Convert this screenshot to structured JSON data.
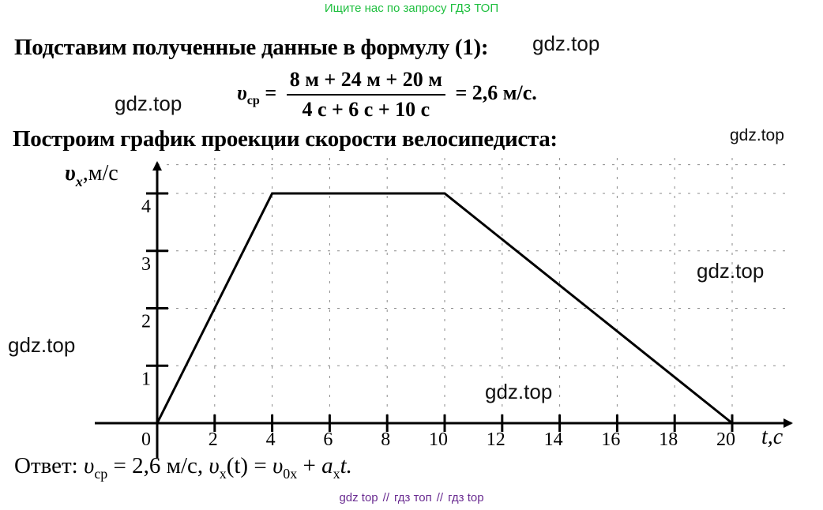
{
  "header": {
    "search_hint": "Ищите нас по запросу ГДЗ ТОП",
    "search_hint_color": "#1fbf3f"
  },
  "watermark": "gdz.top",
  "text": {
    "intro": "Подставим полученные данные в формулу (1):",
    "formula": {
      "lhs": "υ",
      "lhs_sub": "ср",
      "equals": "=",
      "numerator": "8 м + 24 м + 20 м",
      "denominator": "4 с + 6 с + 10 с",
      "result": "= 2,6 м/с."
    },
    "graph_intro": "Построим график проекции скорости велосипедиста:",
    "answer": {
      "prefix": "Ответ:",
      "v": "υ",
      "v_sub": "ср",
      "part1": " = 2,6 м/с, ",
      "vx": "υ",
      "vx_sub": "x",
      "part2": "(t) = ",
      "v0": "υ",
      "v0_sub": "0x",
      "part3": " + ",
      "a": "a",
      "a_sub": "x",
      "part4": "t."
    }
  },
  "chart_data": {
    "type": "line",
    "x": [
      0,
      4,
      10,
      20
    ],
    "y": [
      0,
      4,
      4,
      0
    ],
    "xlabel": "t,с",
    "ylabel_main": "υ",
    "ylabel_sub": "x",
    "ylabel_unit": ",м/с",
    "xticks": [
      0,
      2,
      4,
      6,
      8,
      10,
      12,
      14,
      16,
      18,
      20
    ],
    "yticks": [
      1,
      2,
      3,
      4
    ],
    "xlim": [
      0,
      20
    ],
    "ylim": [
      0,
      4
    ],
    "grid": true
  },
  "footer": {
    "links": [
      {
        "label": "gdz top",
        "color": "#6a2c91"
      },
      {
        "label": "гдз топ",
        "color": "#6a2c91"
      },
      {
        "label": "гдз top",
        "color": "#6a2c91"
      }
    ],
    "separator": "//"
  }
}
